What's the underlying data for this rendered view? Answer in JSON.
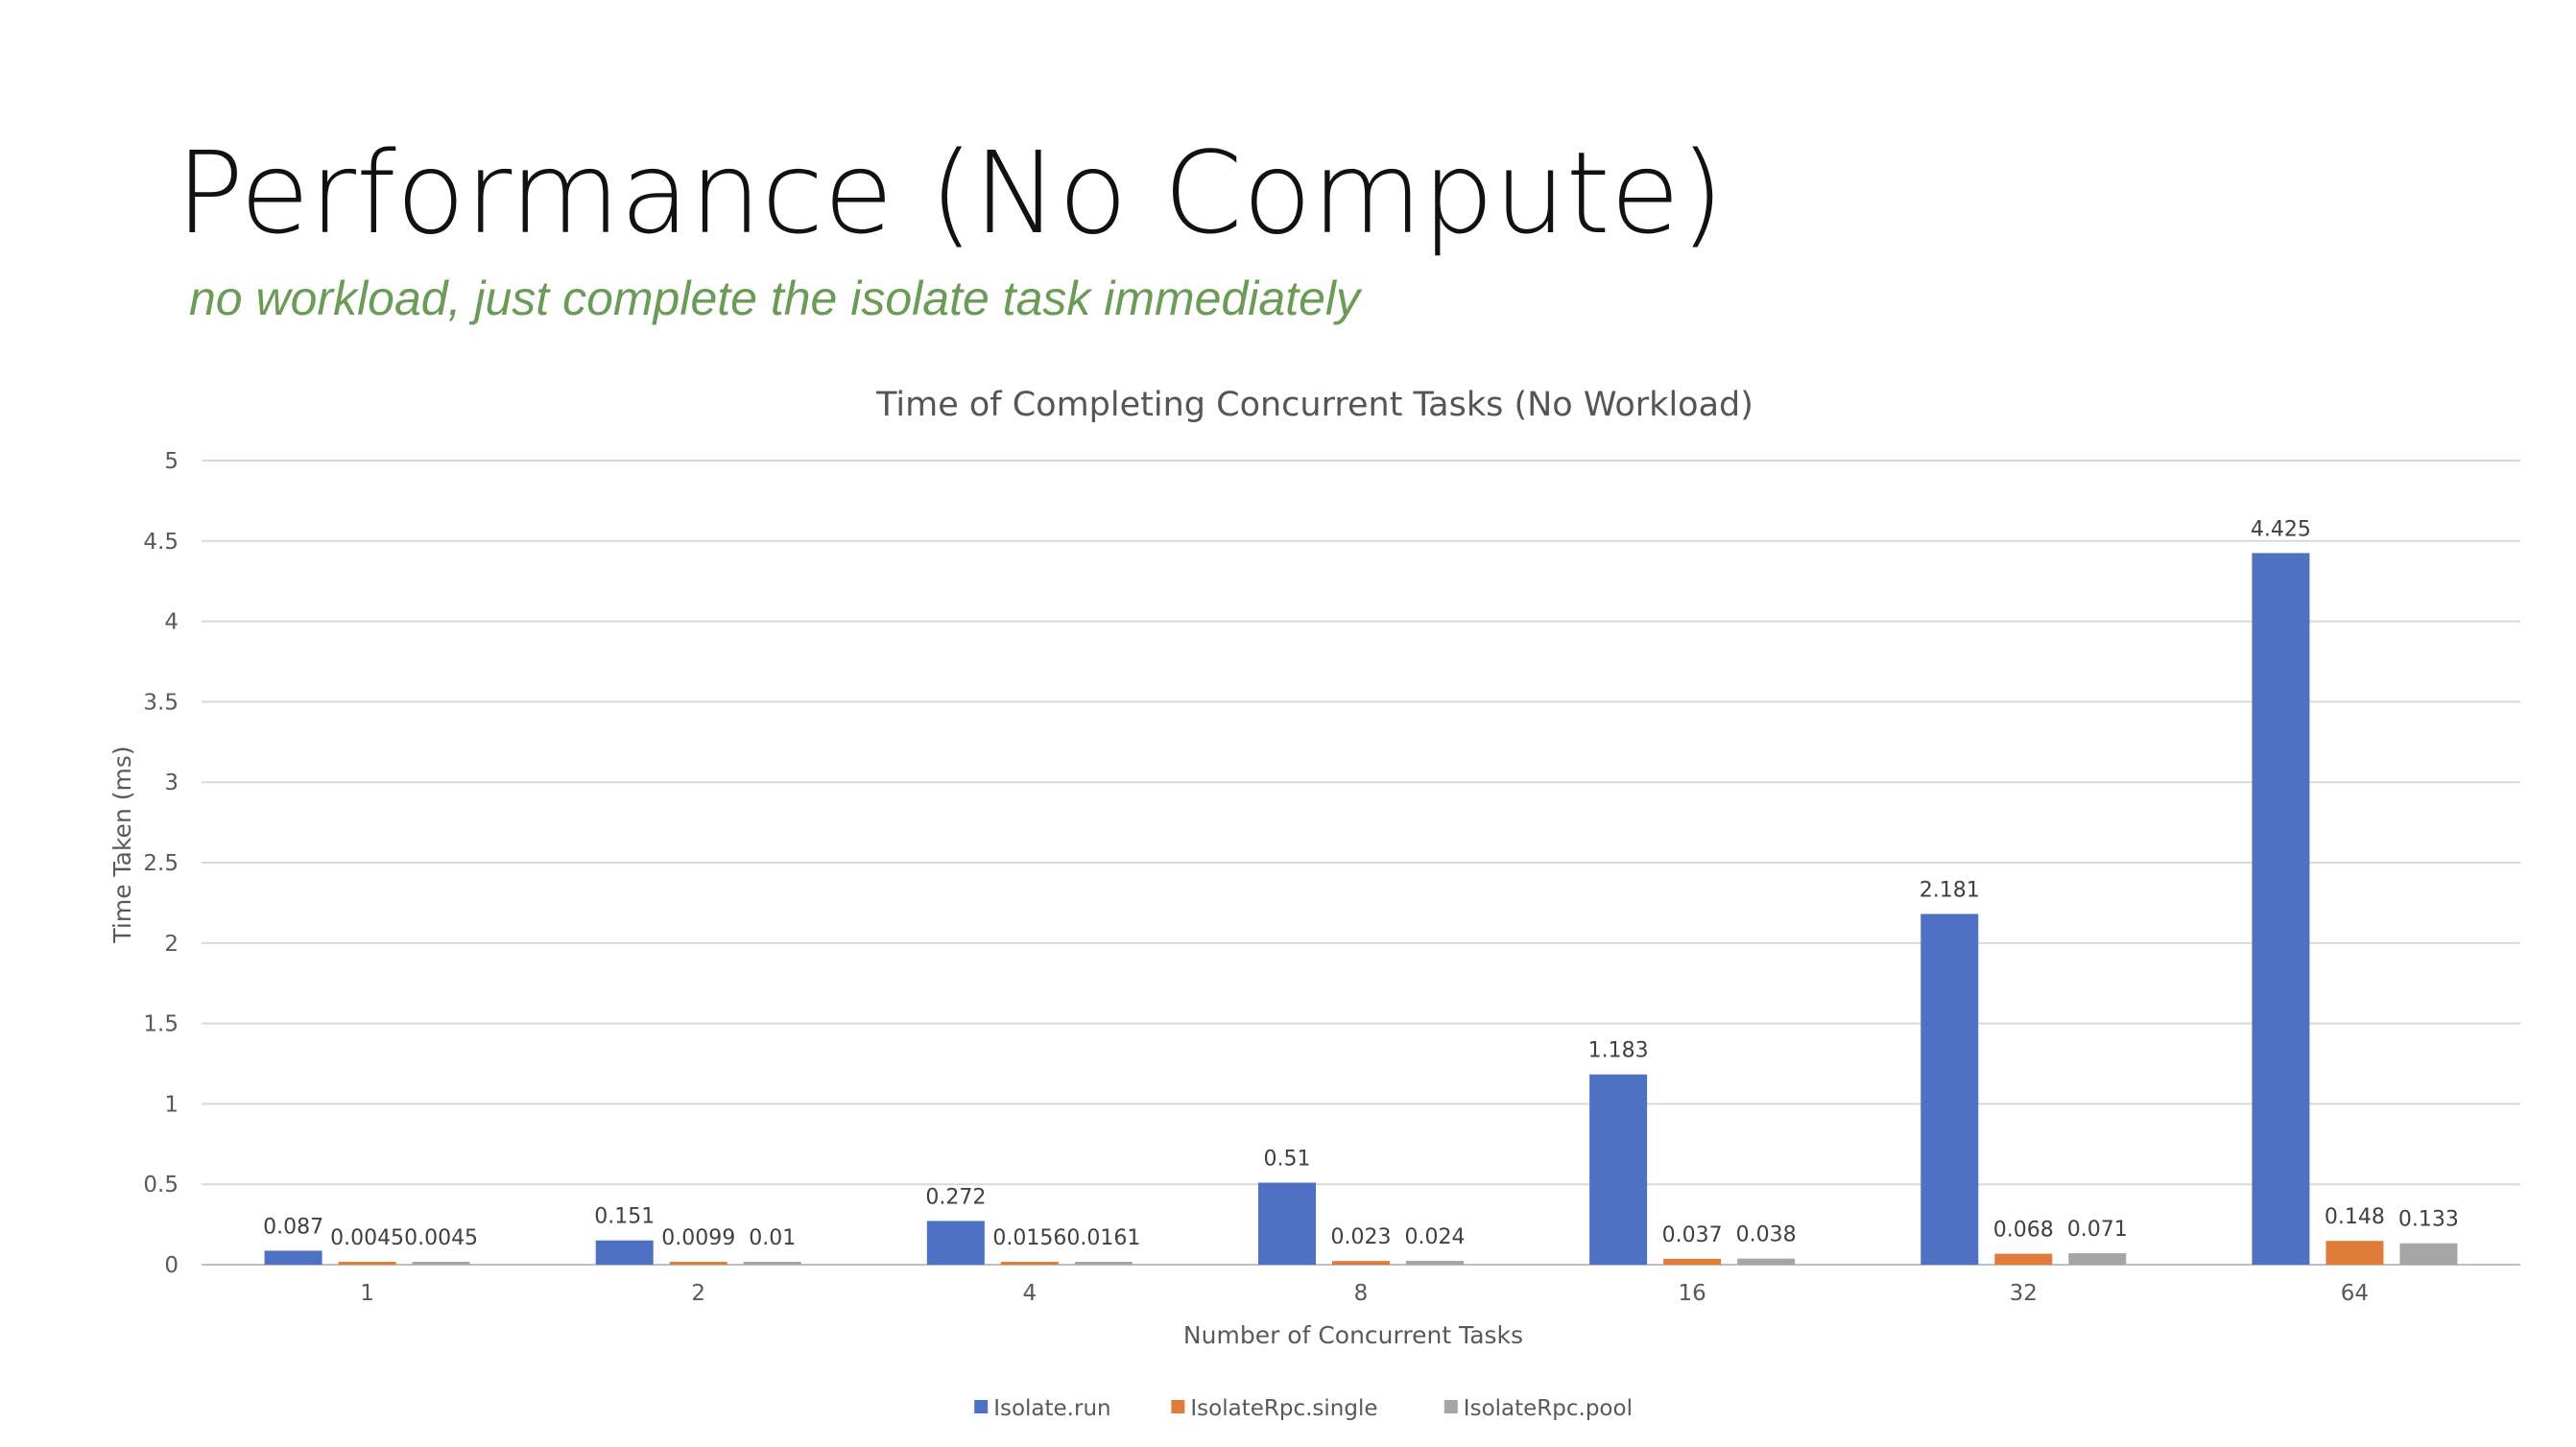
{
  "slide": {
    "title": "Performance (No Compute)",
    "subtitle": "no workload, just complete the isolate task immediately"
  },
  "chart_data": {
    "type": "bar",
    "title": "Time of Completing Concurrent Tasks (No Workload)",
    "xlabel": "Number of Concurrent Tasks",
    "ylabel": "Time Taken (ms)",
    "ylim": [
      0,
      5
    ],
    "yticks": [
      "0",
      "0.5",
      "1",
      "1.5",
      "2",
      "2.5",
      "3",
      "3.5",
      "4",
      "4.5",
      "5"
    ],
    "grid": true,
    "legend_position": "bottom",
    "categories": [
      "1",
      "2",
      "4",
      "8",
      "16",
      "32",
      "64"
    ],
    "series": [
      {
        "name": "Isolate.run",
        "color": "#4f71c3",
        "values": [
          0.087,
          0.151,
          0.272,
          0.51,
          1.183,
          2.181,
          4.425
        ],
        "labels": [
          "0.087",
          "0.151",
          "0.272",
          "0.51",
          "1.183",
          "2.181",
          "4.425"
        ]
      },
      {
        "name": "IsolateRpc.single",
        "color": "#e07b39",
        "values": [
          0.0045,
          0.0099,
          0.0156,
          0.023,
          0.037,
          0.068,
          0.148
        ],
        "labels": [
          "0.0045",
          "0.0099",
          "0.0156",
          "0.023",
          "0.037",
          "0.068",
          "0.148"
        ]
      },
      {
        "name": "IsolateRpc.pool",
        "color": "#a5a5a5",
        "values": [
          0.0045,
          0.01,
          0.0161,
          0.024,
          0.038,
          0.071,
          0.133
        ],
        "labels": [
          "0.0045",
          "0.01",
          "0.0161",
          "0.024",
          "0.038",
          "0.071",
          "0.133"
        ]
      }
    ]
  }
}
